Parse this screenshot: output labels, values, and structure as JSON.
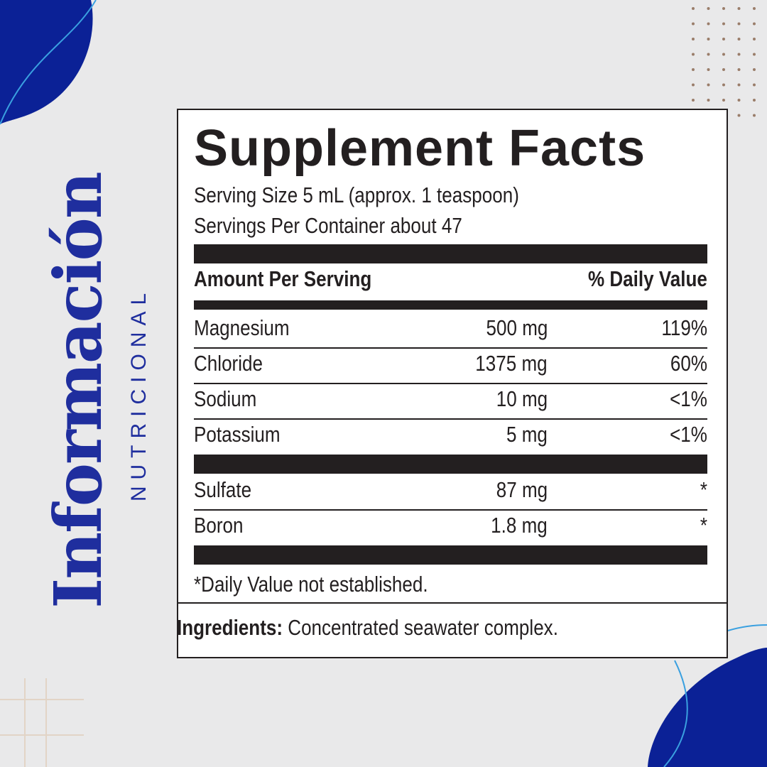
{
  "side_title": "Información",
  "side_subtitle": "NUTRICIONAL",
  "label": {
    "title": "Supplement Facts",
    "serving_size": "Serving Size 5 mL (approx. 1 teaspoon)",
    "servings_per_container": "Servings Per Container about 47",
    "header": {
      "amount": "Amount Per Serving",
      "daily_value": "% Daily Value"
    },
    "groups": [
      [
        [
          "Magnesium",
          "500 mg",
          "119%"
        ],
        [
          "Chloride",
          "1375 mg",
          "60%"
        ],
        [
          "Sodium",
          "10 mg",
          "<1%"
        ],
        [
          "Potassium",
          "5 mg",
          "<1%"
        ]
      ],
      [
        [
          "Sulfate",
          "87 mg",
          "*"
        ],
        [
          "Boron",
          "1.8 mg",
          "*"
        ]
      ]
    ],
    "footnote": "*Daily Value not established."
  },
  "ingredients": {
    "label": "Ingredients:",
    "text": "Concentrated seawater complex."
  }
}
